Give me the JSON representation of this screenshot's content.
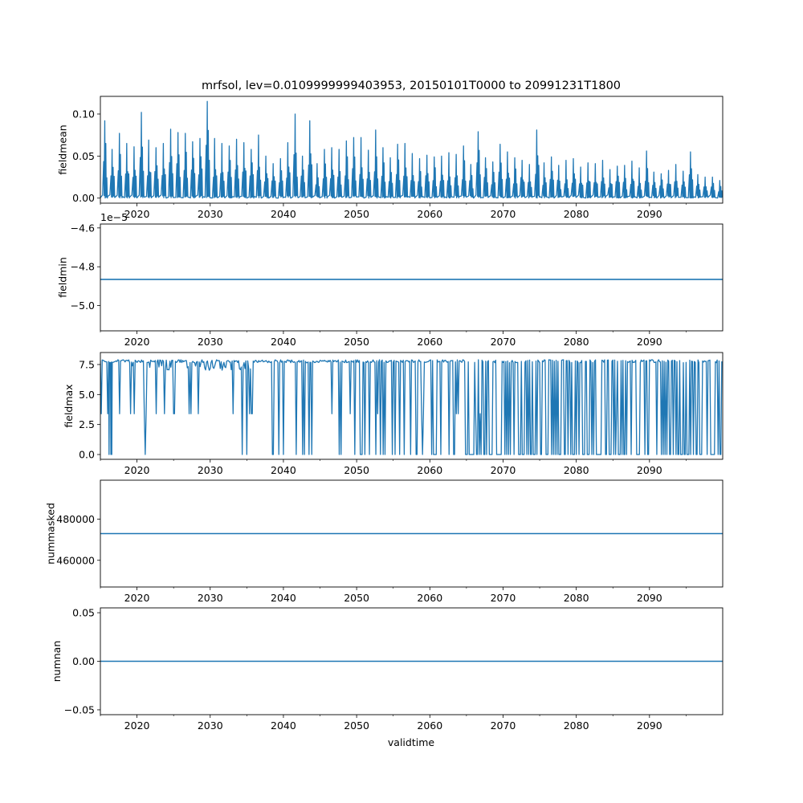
{
  "figure": {
    "title": "mrfsol, lev=0.0109999999403953, 20150101T0000 to 20991231T1800",
    "xlabel": "validtime"
  },
  "colors": {
    "series": "#1f77b4",
    "axes": "#000000",
    "background": "#ffffff"
  },
  "chart_data": [
    {
      "type": "line",
      "name": "fieldmean",
      "ylabel": "fieldmean",
      "xlim": [
        2015,
        2100
      ],
      "ylim": [
        -0.006,
        0.121
      ],
      "xticks": [
        2020,
        2030,
        2040,
        2050,
        2060,
        2070,
        2080,
        2090
      ],
      "xtick_labels": [
        "2020",
        "2030",
        "2040",
        "2050",
        "2060",
        "2070",
        "2080",
        "2090"
      ],
      "yticks": [
        0.0,
        0.05,
        0.1
      ],
      "ytick_labels": [
        "0.00",
        "0.05",
        "0.10"
      ],
      "offset_text": "",
      "pattern": "annual_spikes",
      "baseline": 0.0,
      "annual_peaks": [
        0.092,
        0.058,
        0.077,
        0.065,
        0.061,
        0.102,
        0.069,
        0.06,
        0.065,
        0.082,
        0.078,
        0.077,
        0.067,
        0.071,
        0.115,
        0.071,
        0.065,
        0.062,
        0.07,
        0.066,
        0.058,
        0.075,
        0.05,
        0.041,
        0.047,
        0.066,
        0.1,
        0.05,
        0.092,
        0.041,
        0.058,
        0.06,
        0.058,
        0.068,
        0.072,
        0.072,
        0.057,
        0.081,
        0.06,
        0.048,
        0.064,
        0.065,
        0.053,
        0.047,
        0.051,
        0.049,
        0.05,
        0.054,
        0.052,
        0.062,
        0.04,
        0.079,
        0.048,
        0.043,
        0.064,
        0.055,
        0.048,
        0.045,
        0.04,
        0.081,
        0.042,
        0.049,
        0.039,
        0.045,
        0.047,
        0.037,
        0.042,
        0.041,
        0.045,
        0.034,
        0.038,
        0.039,
        0.044,
        0.036,
        0.056,
        0.031,
        0.029,
        0.033,
        0.04,
        0.032,
        0.055,
        0.028,
        0.025,
        0.025,
        0.021
      ]
    },
    {
      "type": "line",
      "name": "fieldmin",
      "ylabel": "fieldmin",
      "xlim": [
        2015,
        2100
      ],
      "ylim": [
        -5.13,
        -4.58
      ],
      "xticks": [
        2020,
        2030,
        2040,
        2050,
        2060,
        2070,
        2080,
        2090
      ],
      "xtick_labels": [
        "2020",
        "2030",
        "2040",
        "2050",
        "2060",
        "2070",
        "2080",
        "2090"
      ],
      "yticks": [
        -5.0,
        -4.8,
        -4.6
      ],
      "ytick_labels": [
        "−5.0",
        "−4.8",
        "−4.6"
      ],
      "offset_text": "1e−5",
      "pattern": "constant",
      "value": -4.865
    },
    {
      "type": "line",
      "name": "fieldmax",
      "ylabel": "fieldmax",
      "xlim": [
        2015,
        2100
      ],
      "ylim": [
        -0.4,
        8.5
      ],
      "xticks": [
        2020,
        2030,
        2040,
        2050,
        2060,
        2070,
        2080,
        2090
      ],
      "xtick_labels": [
        "2020",
        "2030",
        "2040",
        "2050",
        "2060",
        "2070",
        "2080",
        "2090"
      ],
      "yticks": [
        0.0,
        2.5,
        5.0,
        7.5
      ],
      "ytick_labels": [
        "0.0",
        "2.5",
        "5.0",
        "7.5"
      ],
      "offset_text": "",
      "pattern": "saturation_drops",
      "top_value": 7.9,
      "plateau_value": 7.0,
      "mid_value": 3.4,
      "bottom_value": 0.0
    },
    {
      "type": "line",
      "name": "nummasked",
      "ylabel": "nummasked",
      "xlim": [
        2015,
        2100
      ],
      "ylim": [
        447000,
        499000
      ],
      "xticks": [
        2020,
        2030,
        2040,
        2050,
        2060,
        2070,
        2080,
        2090
      ],
      "xtick_labels": [
        "2020",
        "2030",
        "2040",
        "2050",
        "2060",
        "2070",
        "2080",
        "2090"
      ],
      "yticks": [
        460000,
        480000
      ],
      "ytick_labels": [
        "460000",
        "480000"
      ],
      "offset_text": "",
      "pattern": "constant",
      "value": 473000
    },
    {
      "type": "line",
      "name": "numnan",
      "ylabel": "numnan",
      "xlim": [
        2015,
        2100
      ],
      "ylim": [
        -0.055,
        0.055
      ],
      "xticks": [
        2020,
        2030,
        2040,
        2050,
        2060,
        2070,
        2080,
        2090
      ],
      "xtick_labels": [
        "2020",
        "2030",
        "2040",
        "2050",
        "2060",
        "2070",
        "2080",
        "2090"
      ],
      "yticks": [
        -0.05,
        0.0,
        0.05
      ],
      "ytick_labels": [
        "−0.05",
        "0.00",
        "0.05"
      ],
      "offset_text": "",
      "pattern": "constant",
      "value": 0.0
    }
  ]
}
